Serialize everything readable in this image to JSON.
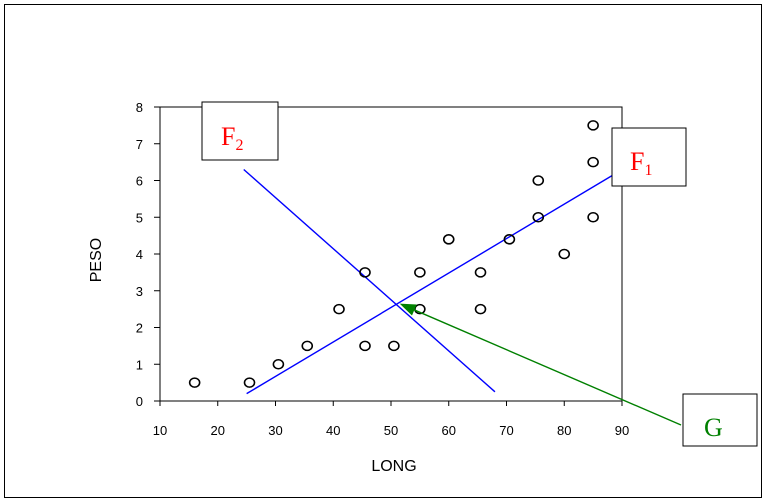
{
  "chart_data": {
    "type": "scatter",
    "xlabel": "LONG",
    "ylabel": "PESO",
    "xlim": [
      10,
      90
    ],
    "ylim": [
      0,
      8
    ],
    "xticks": [
      10,
      20,
      30,
      40,
      50,
      60,
      70,
      80,
      90
    ],
    "yticks": [
      0,
      1,
      2,
      3,
      4,
      5,
      6,
      7,
      8
    ],
    "points": [
      {
        "x": 16,
        "y": 0.5
      },
      {
        "x": 25.5,
        "y": 0.5
      },
      {
        "x": 30.5,
        "y": 1.0
      },
      {
        "x": 35.5,
        "y": 1.5
      },
      {
        "x": 41,
        "y": 2.5
      },
      {
        "x": 45.5,
        "y": 3.5
      },
      {
        "x": 45.5,
        "y": 1.5
      },
      {
        "x": 50.5,
        "y": 1.5
      },
      {
        "x": 55,
        "y": 2.5
      },
      {
        "x": 55,
        "y": 3.5
      },
      {
        "x": 60,
        "y": 4.4
      },
      {
        "x": 65.5,
        "y": 3.5
      },
      {
        "x": 65.5,
        "y": 2.5
      },
      {
        "x": 70.5,
        "y": 4.4
      },
      {
        "x": 75.5,
        "y": 5.0
      },
      {
        "x": 75.5,
        "y": 6.0
      },
      {
        "x": 80,
        "y": 4.0
      },
      {
        "x": 85,
        "y": 5.0
      },
      {
        "x": 85,
        "y": 6.5
      },
      {
        "x": 85,
        "y": 7.5
      }
    ],
    "axes_lines": [
      {
        "name": "F1",
        "x1": 25,
        "y1": 0.2,
        "x2": 89,
        "y2": 6.2,
        "color": "#0000ff"
      },
      {
        "name": "F2",
        "x1": 24.5,
        "y1": 6.3,
        "x2": 68,
        "y2": 0.25,
        "color": "#0000ff"
      }
    ],
    "annotations": [
      {
        "id": "F1",
        "main": "F",
        "sub": "1",
        "color": "#ff0000"
      },
      {
        "id": "F2",
        "main": "F",
        "sub": "2",
        "color": "#ff0000"
      },
      {
        "id": "G",
        "main": "G",
        "sub": "",
        "color": "#008000",
        "points_to": {
          "x": 51.5,
          "y": 2.65
        }
      }
    ],
    "colors": {
      "line": "#0000ff",
      "label": "#ff0000",
      "centroid_arrow": "#008000"
    },
    "grid": false
  }
}
